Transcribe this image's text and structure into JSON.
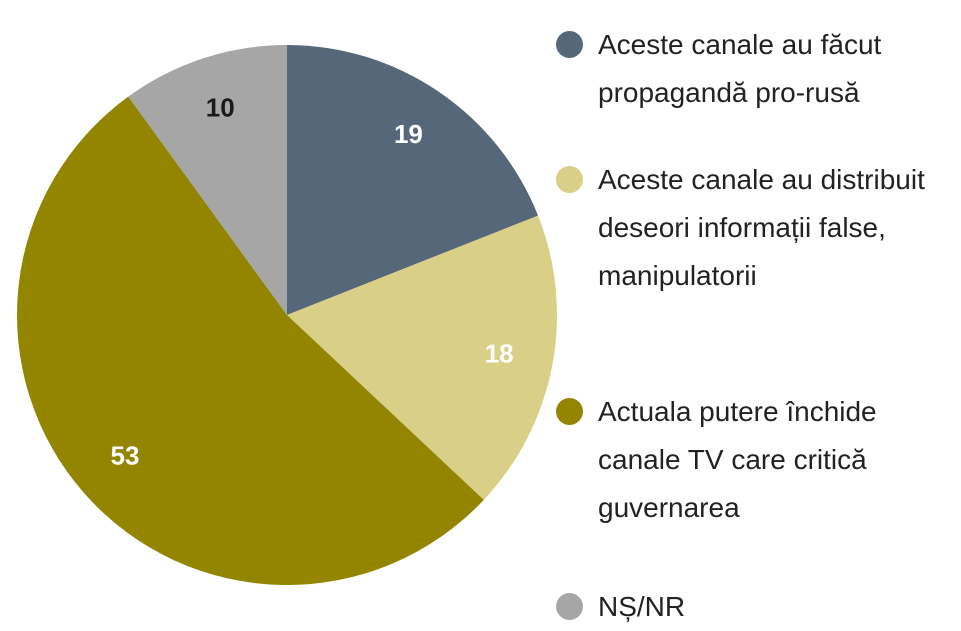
{
  "chart_data": {
    "type": "pie",
    "categories": [
      "Aceste canale au făcut propagandă pro-rusă",
      "Aceste canale au distribuit deseori informații false, manipulatorii",
      "Actuala putere închide canale TV care critică guvernarea",
      "NȘ/NR"
    ],
    "values": [
      19,
      18,
      53,
      10
    ],
    "colors": [
      "#566779",
      "#d9cf87",
      "#938500",
      "#a6a6a6"
    ],
    "label_colors": [
      "#ffffff",
      "#ffffff",
      "#ffffff",
      "#1a1a1a"
    ],
    "legend": "right"
  }
}
